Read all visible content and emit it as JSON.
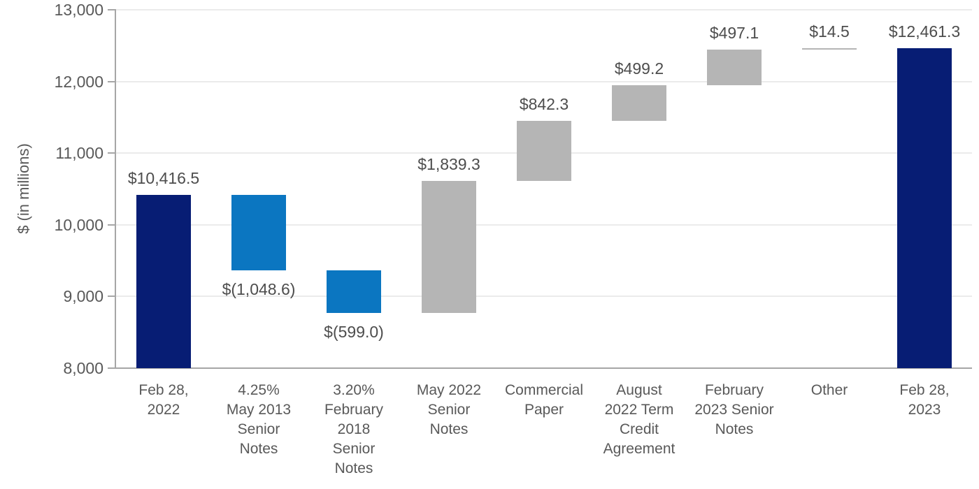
{
  "chart_data": {
    "type": "bar",
    "variant": "waterfall",
    "title": "",
    "ylabel": "$ (in millions)",
    "xlabel": "",
    "ylim": [
      8000,
      13000
    ],
    "ytick_step": 1000,
    "ytick_labels": [
      "8,000",
      "9,000",
      "10,000",
      "11,000",
      "12,000",
      "13,000"
    ],
    "grid": true,
    "legend": false,
    "colors": {
      "total": "#071d74",
      "decrease": "#0b76c1",
      "increase": "#b5b5b5",
      "axis": "#a6a6a6",
      "gridline": "#ebebeb",
      "axis_text": "#595959",
      "data_label": "#4d4d4d"
    },
    "categories": [
      "Feb 28, 2022",
      "4.25% May 2013 Senior Notes",
      "3.20% February 2018 Senior Notes",
      "May 2022 Senior Notes",
      "Commercial Paper",
      "August 2022 Term Credit Agreement",
      "February 2023 Senior Notes",
      "Other",
      "Feb 28, 2023"
    ],
    "values": [
      10416.5,
      -1048.6,
      -599.0,
      1839.3,
      842.3,
      499.2,
      497.1,
      14.5,
      12461.3
    ],
    "bars": [
      {
        "category_lines": [
          "Feb 28,",
          "2022"
        ],
        "kind": "total",
        "value": 10416.5,
        "display": "$10,416.5",
        "span": [
          8000,
          10416.5
        ],
        "label_side": "above"
      },
      {
        "category_lines": [
          "4.25%",
          "May 2013",
          "Senior",
          "Notes"
        ],
        "kind": "decrease",
        "value": -1048.6,
        "display": "$(1,048.6)",
        "span": [
          9367.9,
          10416.5
        ],
        "label_side": "below"
      },
      {
        "category_lines": [
          "3.20%",
          "February",
          "2018",
          "Senior",
          "Notes"
        ],
        "kind": "decrease",
        "value": -599.0,
        "display": "$(599.0)",
        "span": [
          8768.9,
          9367.9
        ],
        "label_side": "below"
      },
      {
        "category_lines": [
          "May 2022",
          "Senior",
          "Notes"
        ],
        "kind": "increase",
        "value": 1839.3,
        "display": "$1,839.3",
        "span": [
          8768.9,
          10608.2
        ],
        "label_side": "above"
      },
      {
        "category_lines": [
          "Commercial",
          "Paper"
        ],
        "kind": "increase",
        "value": 842.3,
        "display": "$842.3",
        "span": [
          10608.2,
          11450.5
        ],
        "label_side": "above"
      },
      {
        "category_lines": [
          "August",
          "2022 Term",
          "Credit",
          "Agreement"
        ],
        "kind": "increase",
        "value": 499.2,
        "display": "$499.2",
        "span": [
          11450.5,
          11949.7
        ],
        "label_side": "above"
      },
      {
        "category_lines": [
          "February",
          "2023 Senior",
          "Notes"
        ],
        "kind": "increase",
        "value": 497.1,
        "display": "$497.1",
        "span": [
          11949.7,
          12446.8
        ],
        "label_side": "above"
      },
      {
        "category_lines": [
          "Other"
        ],
        "kind": "increase",
        "value": 14.5,
        "display": "$14.5",
        "span": [
          12446.8,
          12461.3
        ],
        "label_side": "above"
      },
      {
        "category_lines": [
          "Feb 28,",
          "2023"
        ],
        "kind": "total",
        "value": 12461.3,
        "display": "$12,461.3",
        "span": [
          8000,
          12461.3
        ],
        "label_side": "above"
      }
    ]
  }
}
